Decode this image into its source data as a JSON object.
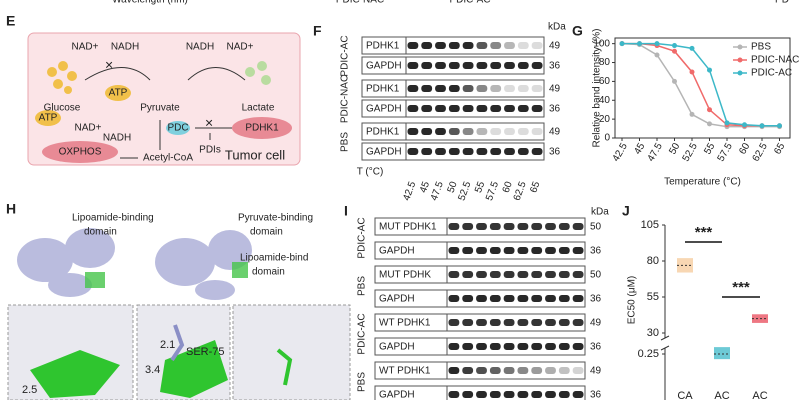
{
  "top_fragments": [
    "Wavelength (nm)",
    "PDIC-NAC",
    "PDIC-AC",
    "PD"
  ],
  "panel_e": {
    "letter": "E",
    "labels": [
      "NAD+",
      "NADH",
      "Glucose",
      "ATP",
      "Pyruvate",
      "NADH",
      "NAD+",
      "Lactate",
      "ATP",
      "NAD+",
      "NADH",
      "PDC",
      "PDHK1",
      "PDIs",
      "OXPHOS",
      "Acetyl-CoA",
      "Tumor cell"
    ]
  },
  "panel_f": {
    "letter": "F",
    "unit": "kDa",
    "groups": [
      "PDIC-AC",
      "PDIC-NAC",
      "PBS"
    ],
    "rows": [
      "PDHK1",
      "GAPDH"
    ],
    "weights": [
      49,
      36
    ],
    "temp_label": "T (°C)",
    "temps": [
      42.5,
      45,
      47.5,
      50,
      52.5,
      55,
      57.5,
      60,
      62.5,
      65
    ]
  },
  "panel_h": {
    "letter": "H",
    "labels": [
      [
        "Lipoamide-binding",
        "domain"
      ],
      [
        "Pyruvate-binding",
        "domain"
      ],
      [
        "Lipoamide-bind",
        "domain"
      ]
    ],
    "distances": [
      "2.1",
      "3.4",
      "2.5"
    ],
    "residue": "SER-75"
  },
  "panel_i": {
    "letter": "I",
    "unit": "kDa",
    "blocks": [
      {
        "group": "PDIC-AC",
        "rows": [
          "MUT PDHK1",
          "GAPDH"
        ],
        "weights": [
          50,
          36
        ]
      },
      {
        "group": "PBS",
        "rows": [
          "MUT PDHK",
          "GAPDH"
        ],
        "weights": [
          50,
          36
        ]
      },
      {
        "group": "PDIC-AC",
        "rows": [
          "WT PDHK1",
          "GAPDH"
        ],
        "weights": [
          49,
          36
        ]
      },
      {
        "group": "PBS",
        "rows": [
          "WT PDHK1",
          "GAPDH"
        ],
        "weights": [
          49,
          36
        ]
      }
    ]
  },
  "chart_data": [
    {
      "type": "line",
      "letter": "G",
      "ylabel": "Relative band intensity (%)",
      "xlabel": "Temperature (°C)",
      "x": [
        42.5,
        45,
        47.5,
        50,
        52.5,
        55,
        57.5,
        60,
        62.5,
        65
      ],
      "xlim": [
        41.5,
        66.5
      ],
      "xticks": [
        42.5,
        45,
        47.5,
        50,
        52.5,
        55,
        57.5,
        60,
        62.5,
        65
      ],
      "ylim": [
        0,
        106
      ],
      "yticks": [
        0,
        20,
        40,
        60,
        80,
        100
      ],
      "legend": "top-right",
      "series": [
        {
          "name": "PBS",
          "color": "#b5b5b5",
          "values": [
            100,
            99,
            88,
            60,
            25,
            15,
            12,
            12,
            12,
            12
          ]
        },
        {
          "name": "PDIC-NAC",
          "color": "#f06a6a",
          "values": [
            100,
            100,
            98,
            92,
            70,
            30,
            14,
            13,
            13,
            13
          ]
        },
        {
          "name": "PDIC-AC",
          "color": "#3cb8c8",
          "values": [
            100,
            100,
            100,
            98,
            95,
            72,
            16,
            14,
            13,
            13
          ]
        }
      ]
    },
    {
      "type": "box",
      "letter": "J",
      "ylabel": "EC50 (μM)",
      "categories": [
        "CA",
        "AC",
        "AC"
      ],
      "values": [
        77,
        0.25,
        40
      ],
      "low": [
        72,
        0.22,
        37
      ],
      "high": [
        82,
        0.29,
        43
      ],
      "colors": [
        "#f5c99a",
        "#3cb8c8",
        "#e84a5a"
      ],
      "ylim": [
        0,
        105
      ],
      "yticks": [
        0.25,
        30,
        55,
        80,
        105
      ],
      "annotations": [
        "***",
        "***"
      ]
    }
  ]
}
